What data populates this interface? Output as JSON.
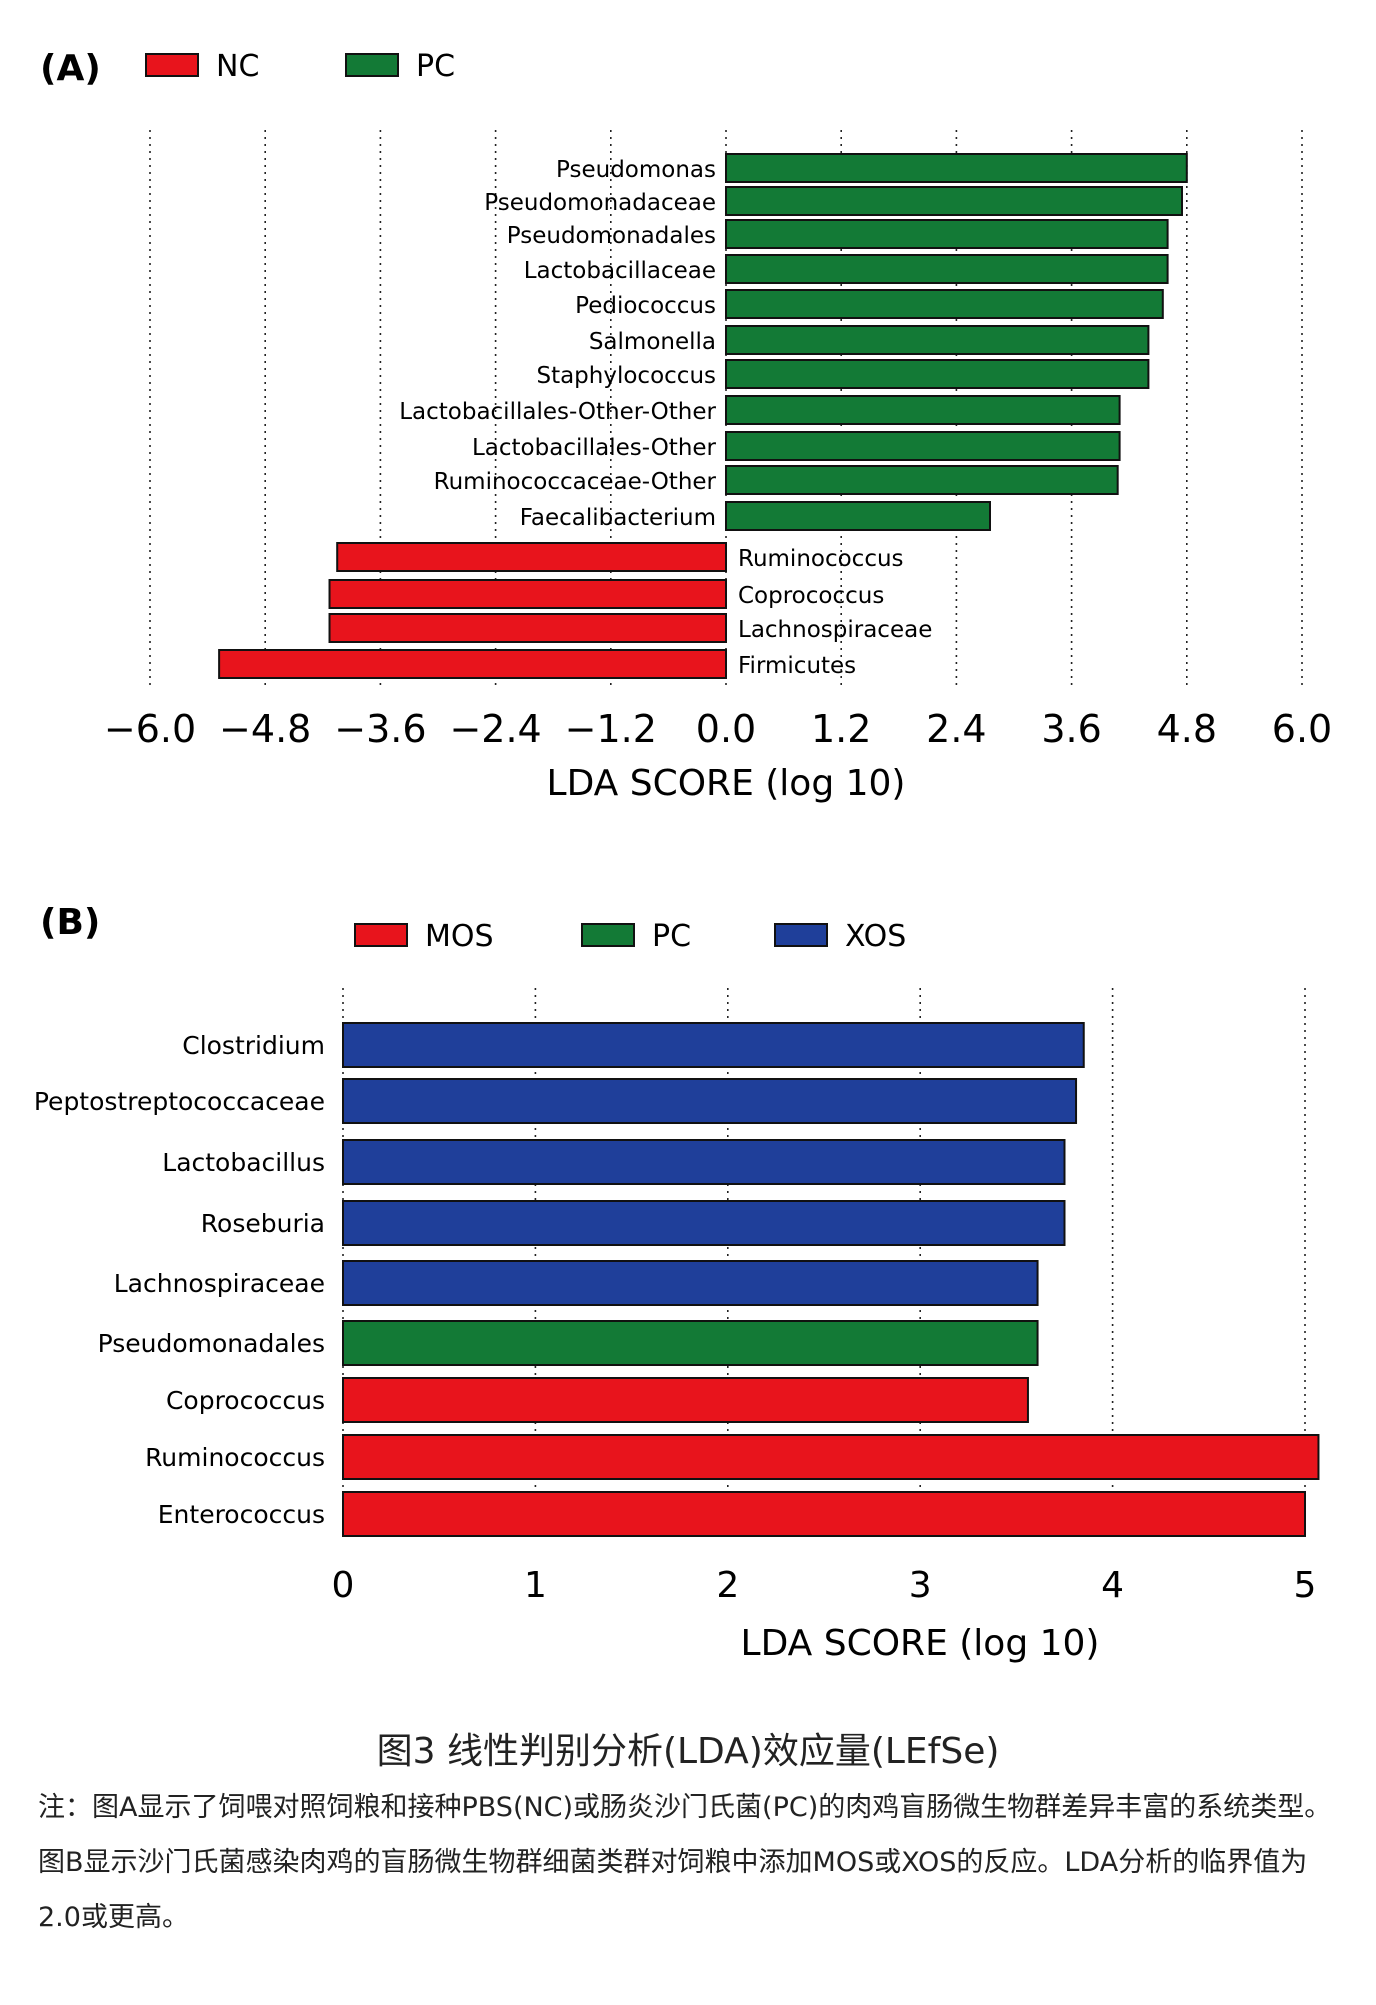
{
  "chart_data": [
    {
      "type": "bar",
      "orientation": "horizontal",
      "panel_label": "(A)",
      "legend": [
        {
          "name": "NC",
          "color": "#e8141c"
        },
        {
          "name": "PC",
          "color": "#137a36"
        }
      ],
      "categories": [
        "Pseudomonas",
        "Pseudomonadaceae",
        "Pseudomonadales",
        "Lactobacillaceae",
        "Pediococcus",
        "Salmonella",
        "Staphylococcus",
        "Lactobacillales-Other-Other",
        "Lactobacillales-Other",
        "Ruminococcaceae-Other",
        "Faecalibacterium",
        "Ruminococcus",
        "Coprococcus",
        "Lachnospiraceae",
        "Firmicutes"
      ],
      "values": [
        4.8,
        4.75,
        4.6,
        4.6,
        4.55,
        4.4,
        4.4,
        4.1,
        4.1,
        4.08,
        2.75,
        -4.05,
        -4.13,
        -4.13,
        -5.28
      ],
      "groups": [
        "PC",
        "PC",
        "PC",
        "PC",
        "PC",
        "PC",
        "PC",
        "PC",
        "PC",
        "PC",
        "PC",
        "NC",
        "NC",
        "NC",
        "NC"
      ],
      "xlabel": "LDA SCORE (log 10)",
      "xlim": [
        -6.0,
        6.0
      ],
      "xticks": [
        "−6.0",
        "−4.8",
        "−3.6",
        "−2.4",
        "−1.2",
        "0.0",
        "1.2",
        "2.4",
        "3.6",
        "4.8",
        "6.0"
      ],
      "grid": "vertical dotted"
    },
    {
      "type": "bar",
      "orientation": "horizontal",
      "panel_label": "(B)",
      "legend": [
        {
          "name": "MOS",
          "color": "#e8141c"
        },
        {
          "name": "PC",
          "color": "#137a36"
        },
        {
          "name": "XOS",
          "color": "#1f3f9a"
        }
      ],
      "categories": [
        "Clostridium",
        "Peptostreptococcaceae",
        "Lactobacillus",
        "Roseburia",
        "Lachnospiraceae",
        "Pseudomonadales",
        "Coprococcus",
        "Ruminococcus",
        "Enterococcus"
      ],
      "values": [
        3.85,
        3.81,
        3.75,
        3.75,
        3.61,
        3.61,
        3.56,
        5.07,
        5.0
      ],
      "groups": [
        "XOS",
        "XOS",
        "XOS",
        "XOS",
        "XOS",
        "PC",
        "MOS",
        "MOS",
        "MOS"
      ],
      "xlabel": "LDA SCORE (log 10)",
      "xlim": [
        0,
        5
      ],
      "xticks": [
        "0",
        "1",
        "2",
        "3",
        "4",
        "5"
      ],
      "grid": "vertical dotted"
    }
  ],
  "caption": {
    "title": "图3 线性判别分析(LDA)效应量(LEfSe)",
    "note": "注：图A显示了饲喂对照饲粮和接种PBS(NC)或肠炎沙门氏菌(PC)的肉鸡盲肠微生物群差异丰富的系统类型。图B显示沙门氏菌感染肉鸡的盲肠微生物群细菌类群对饲粮中添加MOS或XOS的反应。LDA分析的临界值为2.0或更高。"
  }
}
